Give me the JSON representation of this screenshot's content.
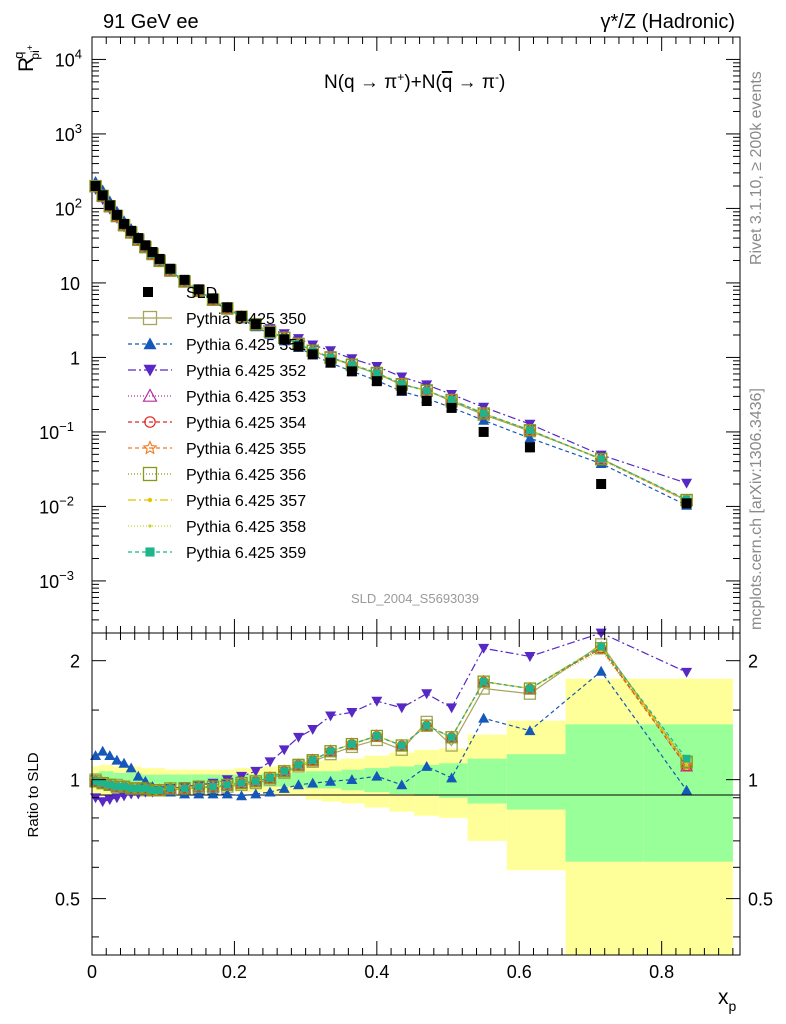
{
  "header": {
    "left": "91 GeV ee",
    "right": "γ*/Z (Hadronic)"
  },
  "side_labels": {
    "rivet": "Rivet 3.1.10, ≥ 200k events",
    "mcplots": "mcplots.cern.ch [arXiv:1306.3436]"
  },
  "chart_data": [
    {
      "type": "line",
      "title": "",
      "subtitle_parts": [
        "N(q → π",
        "+",
        ")+N(",
        "q",
        " → π",
        "-",
        ")"
      ],
      "watermark": "SLD_2004_S5693039",
      "ylabel_parts": [
        "R",
        "q",
        "pi",
        "+"
      ],
      "xlim": [
        0,
        0.91
      ],
      "yscale": "log",
      "ylim": [
        0.0002,
        20000
      ],
      "y_ticks": [
        {
          "v": 10000,
          "base": "10",
          "exp": "4"
        },
        {
          "v": 1000,
          "base": "10",
          "exp": "3"
        },
        {
          "v": 100,
          "base": "10",
          "exp": "2"
        },
        {
          "v": 10,
          "base": "10",
          "exp": ""
        },
        {
          "v": 1,
          "base": "1",
          "exp": ""
        },
        {
          "v": 0.1,
          "base": "10",
          "exp": "−1"
        },
        {
          "v": 0.01,
          "base": "10",
          "exp": "−2"
        },
        {
          "v": 0.001,
          "base": "10",
          "exp": "−3"
        }
      ],
      "x": [
        0.005,
        0.015,
        0.025,
        0.035,
        0.045,
        0.055,
        0.065,
        0.075,
        0.085,
        0.095,
        0.11,
        0.13,
        0.15,
        0.17,
        0.19,
        0.21,
        0.23,
        0.25,
        0.27,
        0.29,
        0.31,
        0.335,
        0.365,
        0.4,
        0.435,
        0.47,
        0.505,
        0.55,
        0.615,
        0.715,
        0.835
      ],
      "data": {
        "name": "SLD",
        "values": [
          200,
          150,
          110,
          82,
          62,
          50,
          40,
          32,
          26,
          21,
          15.5,
          11,
          8.2,
          6.2,
          4.7,
          3.6,
          2.8,
          2.2,
          1.75,
          1.4,
          1.1,
          0.85,
          0.65,
          0.48,
          0.36,
          0.26,
          0.21,
          0.1,
          0.062,
          0.02,
          0.011
        ],
        "ratio_band_inner": [
          0.04,
          0.05,
          0.05,
          0.04,
          0.04,
          0.04,
          0.04,
          0.03,
          0.03,
          0.03,
          0.03,
          0.03,
          0.03,
          0.03,
          0.03,
          0.03,
          0.03,
          0.04,
          0.04,
          0.04,
          0.05,
          0.05,
          0.06,
          0.07,
          0.08,
          0.09,
          0.1,
          0.13,
          0.16,
          0.38,
          0.38
        ],
        "ratio_band_outer": [
          0.08,
          0.09,
          0.09,
          0.08,
          0.08,
          0.08,
          0.08,
          0.07,
          0.07,
          0.07,
          0.06,
          0.06,
          0.06,
          0.06,
          0.06,
          0.07,
          0.07,
          0.08,
          0.09,
          0.09,
          0.11,
          0.12,
          0.13,
          0.15,
          0.17,
          0.19,
          0.2,
          0.3,
          0.41,
          0.8,
          0.8
        ]
      },
      "series": [
        {
          "name": "Pythia 6.425 350",
          "color": "#a7a45e",
          "marker": "square-open",
          "dash": "",
          "ratio": [
            1.0,
            0.98,
            0.97,
            0.97,
            0.96,
            0.95,
            0.95,
            0.94,
            0.94,
            0.94,
            0.94,
            0.95,
            0.95,
            0.96,
            0.96,
            0.97,
            0.98,
            1.0,
            1.04,
            1.08,
            1.11,
            1.16,
            1.21,
            1.26,
            1.19,
            1.4,
            1.22,
            1.7,
            1.65,
            2.2,
            1.1
          ]
        },
        {
          "name": "Pythia 6.425 351",
          "color": "#1558b8",
          "marker": "triangle-up",
          "dash": "4,3",
          "ratio": [
            1.15,
            1.18,
            1.15,
            1.12,
            1.1,
            1.07,
            1.02,
            0.99,
            0.96,
            0.94,
            0.93,
            0.92,
            0.92,
            0.92,
            0.92,
            0.91,
            0.92,
            0.93,
            0.95,
            0.97,
            0.98,
            0.99,
            1.0,
            1.02,
            0.97,
            1.08,
            1.01,
            1.43,
            1.33,
            1.88,
            0.94
          ]
        },
        {
          "name": "Pythia 6.425 352",
          "color": "#5728c6",
          "marker": "triangle-down",
          "dash": "8,3,2,3",
          "ratio": [
            0.9,
            0.88,
            0.89,
            0.9,
            0.91,
            0.92,
            0.92,
            0.93,
            0.93,
            0.94,
            0.95,
            0.96,
            0.97,
            0.98,
            1.0,
            1.02,
            1.05,
            1.11,
            1.19,
            1.28,
            1.34,
            1.45,
            1.48,
            1.58,
            1.52,
            1.65,
            1.52,
            2.15,
            2.05,
            2.45,
            1.87
          ]
        },
        {
          "name": "Pythia 6.425 353",
          "color": "#b72d9b",
          "marker": "triangle-open",
          "dash": "1,2",
          "ratio": [
            0.99,
            0.98,
            0.97,
            0.96,
            0.96,
            0.95,
            0.95,
            0.95,
            0.94,
            0.94,
            0.95,
            0.95,
            0.96,
            0.96,
            0.97,
            0.98,
            0.99,
            1.01,
            1.05,
            1.09,
            1.12,
            1.18,
            1.23,
            1.29,
            1.22,
            1.37,
            1.28,
            1.77,
            1.7,
            2.15,
            1.08
          ]
        },
        {
          "name": "Pythia 6.425 354",
          "color": "#e42424",
          "marker": "circle-open",
          "dash": "4,3",
          "ratio": [
            0.99,
            0.98,
            0.97,
            0.96,
            0.96,
            0.95,
            0.95,
            0.95,
            0.94,
            0.94,
            0.95,
            0.95,
            0.96,
            0.96,
            0.97,
            0.98,
            0.99,
            1.01,
            1.05,
            1.09,
            1.12,
            1.18,
            1.23,
            1.29,
            1.22,
            1.37,
            1.28,
            1.77,
            1.7,
            2.15,
            1.08
          ]
        },
        {
          "name": "Pythia 6.425 355",
          "color": "#f07820",
          "marker": "star-open",
          "dash": "4,3",
          "ratio": [
            0.99,
            0.98,
            0.97,
            0.96,
            0.96,
            0.95,
            0.95,
            0.95,
            0.94,
            0.94,
            0.95,
            0.95,
            0.96,
            0.96,
            0.97,
            0.98,
            0.99,
            1.01,
            1.05,
            1.09,
            1.12,
            1.18,
            1.23,
            1.29,
            1.22,
            1.37,
            1.28,
            1.77,
            1.7,
            2.16,
            1.09
          ]
        },
        {
          "name": "Pythia 6.425 356",
          "color": "#849a18",
          "marker": "square-open",
          "dash": "1,2",
          "ratio": [
            0.99,
            0.98,
            0.97,
            0.96,
            0.96,
            0.95,
            0.95,
            0.95,
            0.94,
            0.94,
            0.95,
            0.95,
            0.96,
            0.96,
            0.97,
            0.98,
            0.99,
            1.01,
            1.05,
            1.09,
            1.12,
            1.18,
            1.23,
            1.29,
            1.22,
            1.37,
            1.28,
            1.77,
            1.7,
            2.15,
            1.11
          ]
        },
        {
          "name": "Pythia 6.425 357",
          "color": "#e5c400",
          "marker": "dot",
          "dash": "8,3,2,3",
          "ratio": [
            0.99,
            0.98,
            0.97,
            0.96,
            0.96,
            0.95,
            0.95,
            0.95,
            0.94,
            0.94,
            0.95,
            0.95,
            0.96,
            0.96,
            0.97,
            0.98,
            0.99,
            1.01,
            1.05,
            1.09,
            1.12,
            1.18,
            1.23,
            1.29,
            1.22,
            1.37,
            1.28,
            1.77,
            1.7,
            2.18,
            1.1
          ]
        },
        {
          "name": "Pythia 6.425 358",
          "color": "#c8d42c",
          "marker": "dot-small",
          "dash": "1,2",
          "ratio": [
            0.99,
            0.98,
            0.97,
            0.96,
            0.96,
            0.95,
            0.95,
            0.95,
            0.94,
            0.94,
            0.95,
            0.95,
            0.96,
            0.96,
            0.97,
            0.98,
            0.99,
            1.01,
            1.05,
            1.09,
            1.12,
            1.18,
            1.23,
            1.29,
            1.22,
            1.37,
            1.28,
            1.77,
            1.7,
            2.12,
            1.09
          ]
        },
        {
          "name": "Pythia 6.425 359",
          "color": "#1eb48c",
          "marker": "square-filled",
          "dash": "4,3",
          "ratio": [
            0.99,
            0.98,
            0.97,
            0.96,
            0.96,
            0.95,
            0.95,
            0.95,
            0.94,
            0.94,
            0.95,
            0.95,
            0.96,
            0.96,
            0.97,
            0.98,
            0.99,
            1.01,
            1.05,
            1.09,
            1.12,
            1.18,
            1.23,
            1.29,
            1.22,
            1.37,
            1.28,
            1.77,
            1.7,
            2.17,
            1.13
          ]
        }
      ],
      "legend_position": "left-middle"
    },
    {
      "type": "line",
      "title": "",
      "ylabel": "Ratio to SLD",
      "xlabel_parts": [
        "x",
        "p"
      ],
      "yscale": "log",
      "ylim": [
        0.36,
        2.35
      ],
      "y_ticks": [
        "0.5",
        "1",
        "2"
      ],
      "x_ticks": [
        "0",
        "0.2",
        "0.4",
        "0.6",
        "0.8"
      ],
      "reference_line": 1
    }
  ]
}
